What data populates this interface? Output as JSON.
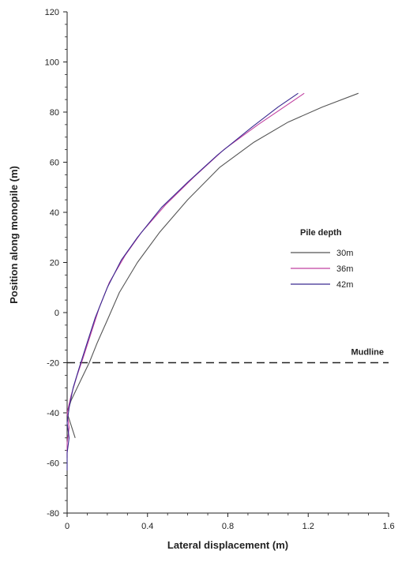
{
  "chart_data": {
    "type": "line",
    "title": "",
    "xlabel": "Lateral displacement (m)",
    "ylabel": "Position along monopile (m)",
    "xlim": [
      0,
      1.6
    ],
    "ylim": [
      -80,
      120
    ],
    "xticks": [
      "0",
      "0.4",
      "0.8",
      "1.2",
      "1.6"
    ],
    "yticks": [
      "-80",
      "-60",
      "-40",
      "-20",
      "0",
      "20",
      "40",
      "60",
      "80",
      "100",
      "120"
    ],
    "grid": false,
    "legend": {
      "title": "Pile depth",
      "placement": "right-middle"
    },
    "annotations": [
      {
        "text": "Mudline",
        "y": -20,
        "style": "dashed-horizontal-line"
      }
    ],
    "series": [
      {
        "name": "30m",
        "color": "#555555",
        "points": [
          [
            0.04,
            -50
          ],
          [
            0.02,
            -45
          ],
          [
            0.0,
            -40
          ],
          [
            0.02,
            -35
          ],
          [
            0.05,
            -30
          ],
          [
            0.08,
            -25
          ],
          [
            0.11,
            -20
          ],
          [
            0.15,
            -12
          ],
          [
            0.2,
            -3
          ],
          [
            0.26,
            8
          ],
          [
            0.35,
            20
          ],
          [
            0.46,
            32
          ],
          [
            0.6,
            45
          ],
          [
            0.76,
            58
          ],
          [
            0.93,
            68
          ],
          [
            1.1,
            76
          ],
          [
            1.27,
            82
          ],
          [
            1.45,
            87.5
          ]
        ]
      },
      {
        "name": "36m",
        "color": "#c040a0",
        "points": [
          [
            0.0,
            -58
          ],
          [
            0.0,
            -52
          ],
          [
            0.01,
            -46
          ],
          [
            0.0,
            -40
          ],
          [
            0.02,
            -33
          ],
          [
            0.05,
            -25
          ],
          [
            0.08,
            -18
          ],
          [
            0.12,
            -8
          ],
          [
            0.16,
            2
          ],
          [
            0.21,
            12
          ],
          [
            0.29,
            23
          ],
          [
            0.37,
            32
          ],
          [
            0.49,
            43
          ],
          [
            0.63,
            54
          ],
          [
            0.78,
            65
          ],
          [
            0.95,
            75
          ],
          [
            1.08,
            82
          ],
          [
            1.18,
            87.5
          ]
        ]
      },
      {
        "name": "42m",
        "color": "#3a2a90",
        "points": [
          [
            0.0,
            -63
          ],
          [
            0.0,
            -56
          ],
          [
            0.01,
            -50
          ],
          [
            0.0,
            -44
          ],
          [
            0.01,
            -38
          ],
          [
            0.03,
            -30
          ],
          [
            0.06,
            -22
          ],
          [
            0.1,
            -12
          ],
          [
            0.14,
            -2
          ],
          [
            0.2,
            10
          ],
          [
            0.27,
            21
          ],
          [
            0.35,
            30
          ],
          [
            0.47,
            42
          ],
          [
            0.6,
            52
          ],
          [
            0.75,
            63
          ],
          [
            0.92,
            74
          ],
          [
            1.05,
            82
          ],
          [
            1.15,
            87.5
          ]
        ]
      }
    ]
  }
}
